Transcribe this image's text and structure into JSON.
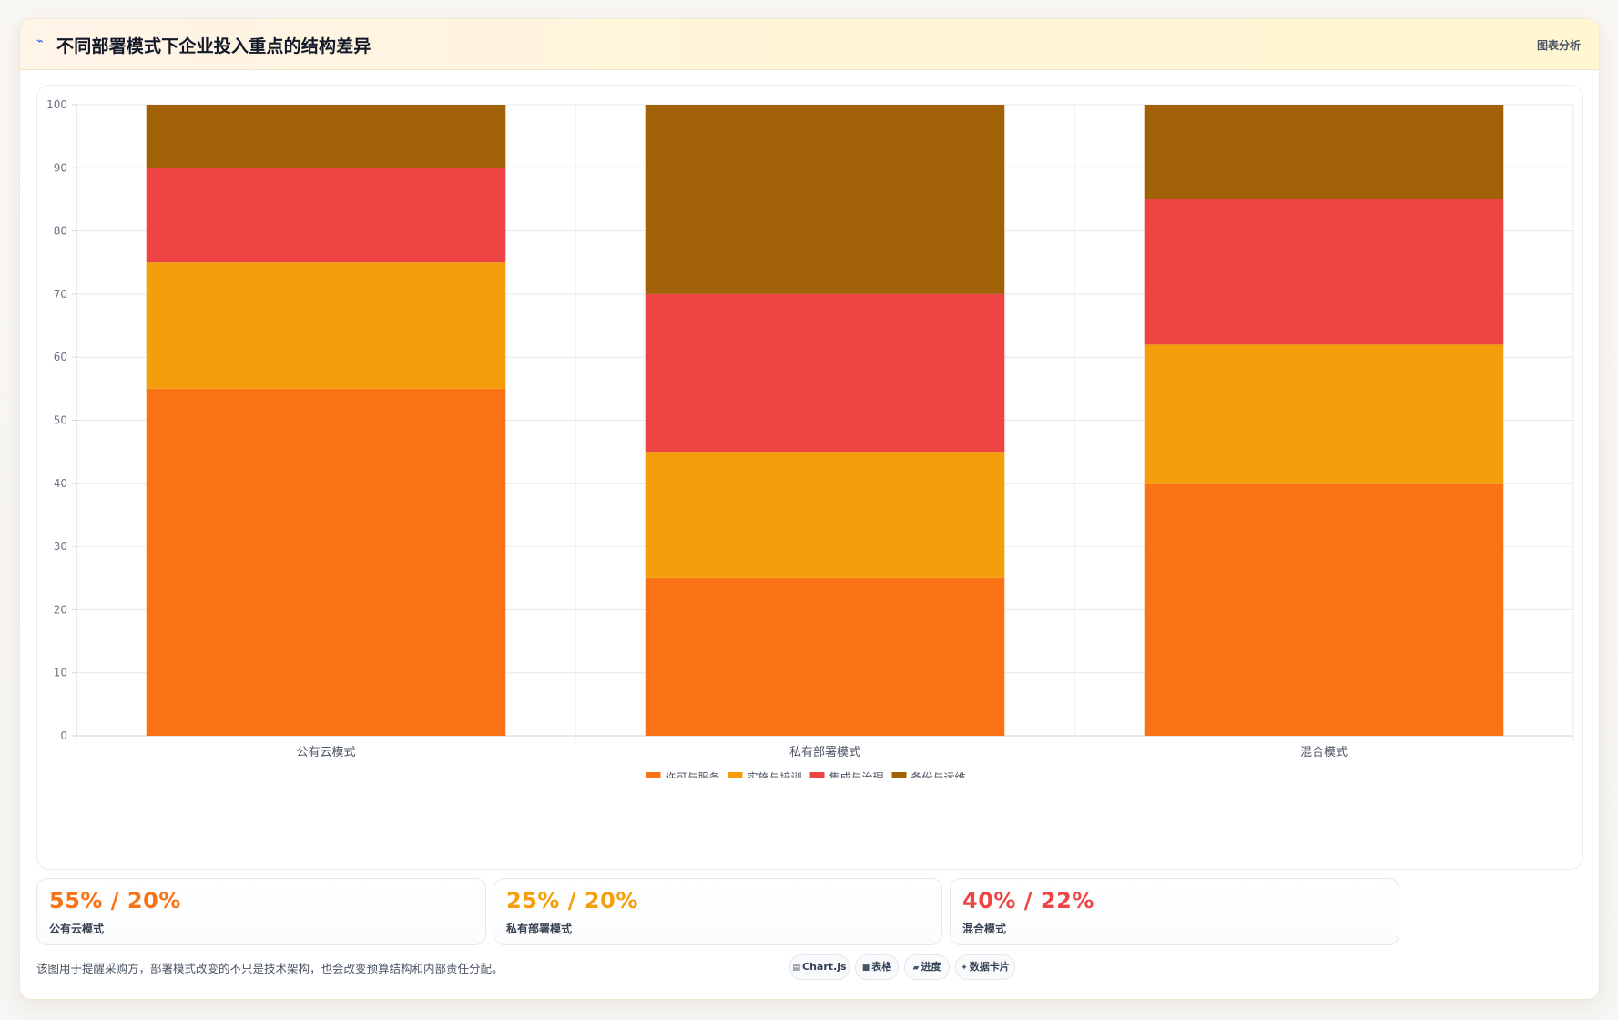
{
  "header": {
    "title": "不同部署模式下企业投入重点的结构差异",
    "tag": "图表分析",
    "title_icon": "chart-line-icon"
  },
  "chart_data": {
    "type": "bar",
    "stacked": true,
    "categories": [
      "公有云模式",
      "私有部署模式",
      "混合模式"
    ],
    "series": [
      {
        "name": "许可与服务",
        "color": "#f97316",
        "values": [
          55,
          25,
          40
        ]
      },
      {
        "name": "实施与培训",
        "color": "#f59e0b",
        "values": [
          20,
          20,
          22
        ]
      },
      {
        "name": "集成与治理",
        "color": "#ef4444",
        "values": [
          15,
          25,
          23
        ]
      },
      {
        "name": "备份与运维",
        "color": "#a16207",
        "values": [
          10,
          30,
          15
        ]
      }
    ],
    "ylim": [
      0,
      100
    ],
    "yticks": [
      "0",
      "10",
      "20",
      "30",
      "40",
      "50",
      "60",
      "70",
      "80",
      "90",
      "100"
    ],
    "grid": true,
    "legend_position": "bottom"
  },
  "stats": [
    {
      "value": "55% / 20%",
      "label": "公有云模式",
      "color": "#f97316"
    },
    {
      "value": "25% / 20%",
      "label": "私有部署模式",
      "color": "#f59e0b"
    },
    {
      "value": "40% / 22%",
      "label": "混合模式",
      "color": "#ef4444"
    }
  ],
  "footer": {
    "note": "该图用于提醒采购方，部署模式改变的不只是技术架构，也会改变预算结构和内部责任分配。",
    "chips": [
      {
        "icon": "chart-icon",
        "glyph": "▤",
        "label": "Chart.js"
      },
      {
        "icon": "table-icon",
        "glyph": "■",
        "label": "表格"
      },
      {
        "icon": "progress-icon",
        "glyph": "▰",
        "label": "进度"
      },
      {
        "icon": "card-icon",
        "glyph": "✦",
        "label": "数据卡片"
      }
    ]
  }
}
